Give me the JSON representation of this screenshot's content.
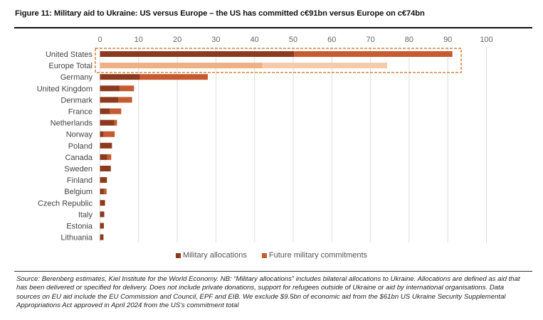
{
  "title": "Figure 11: Military aid to Ukraine: US versus Europe – the US has committed c€91bn versus Europe on c€74bn",
  "source": "Source: Berenberg estimates, Kiel Institute for the World Economy. NB: “Military allocations” includes bilateral allocations to Ukraine. Allocations are defined as aid that has been delivered or specified for delivery. Does not include private donations, support for refugees outside of Ukraine or aid by international organisations. Data sources on EU aid include the EU Commission and Council, EPF and EIB. We exclude $9.5bn of economic aid from the $61bn US Ukraine Security Supplemental Appropriations Act approved in April 2024 from the US's commitment total",
  "chart_data": {
    "type": "bar",
    "orientation": "horizontal",
    "stacked": true,
    "title": "Figure 11: Military aid to Ukraine: US versus Europe – the US has committed c€91bn versus Europe on c€74bn",
    "xlim": [
      0,
      100
    ],
    "x_ticks": [
      "0",
      "10",
      "20",
      "30",
      "40",
      "50",
      "60",
      "70",
      "80",
      "90",
      "100"
    ],
    "grid": true,
    "legend_position": "bottom",
    "categories": [
      "United States",
      "Europe Total",
      "Germany",
      "United Kingdom",
      "Denmark",
      "France",
      "Netherlands",
      "Norway",
      "Poland",
      "Canada",
      "Sweden",
      "Finland",
      "Belgium",
      "Czech Republic",
      "Italy",
      "Estonia",
      "Lithuania"
    ],
    "series": [
      {
        "name": "Military allocations",
        "color": "#8B3A1E",
        "values": [
          50.2,
          42.0,
          10.3,
          5.1,
          4.7,
          2.6,
          3.7,
          0.9,
          3.1,
          1.9,
          2.8,
          1.8,
          1.0,
          1.3,
          1.1,
          1.0,
          0.9
        ]
      },
      {
        "name": "Future military commitments",
        "color": "#C65A30",
        "values": [
          41.0,
          32.3,
          17.6,
          3.7,
          3.6,
          2.9,
          0.7,
          2.9,
          0.0,
          1.0,
          0.0,
          0.0,
          0.7,
          0.0,
          0.0,
          0.0,
          0.0
        ]
      }
    ],
    "highlight": {
      "categories": [
        "United States",
        "Europe Total"
      ],
      "europe_colors": [
        "#EFB083",
        "#F6CBAA"
      ],
      "box_color": "#D9823F"
    }
  }
}
